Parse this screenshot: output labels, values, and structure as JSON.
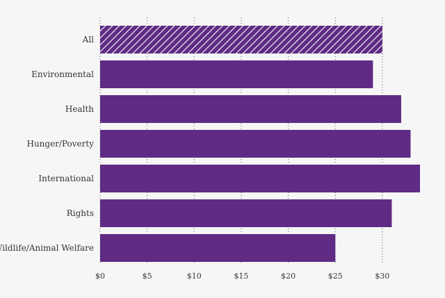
{
  "chart_data": {
    "type": "bar",
    "orientation": "horizontal",
    "title": "",
    "xlabel": "",
    "ylabel": "",
    "categories": [
      "All",
      "Environmental",
      "Health",
      "Hunger/Poverty",
      "International",
      "Rights",
      "Wildlife/Animal Welfare"
    ],
    "values": [
      30,
      29,
      32,
      33,
      34,
      31,
      25
    ],
    "highlighted_category": "All",
    "xlim": [
      0,
      34
    ],
    "x_ticks": [
      0,
      5,
      10,
      15,
      20,
      25,
      30
    ],
    "x_tick_labels": [
      "$0",
      "$5",
      "$10",
      "$15",
      "$20",
      "$25",
      "$30"
    ],
    "grid": "vertical dotted",
    "legend": "none",
    "colors": {
      "bar": "#5f2b85",
      "hatch_stripe": "#ffffff",
      "background": "#f6f6f6",
      "text": "#333333",
      "gridline": "#555555"
    }
  }
}
